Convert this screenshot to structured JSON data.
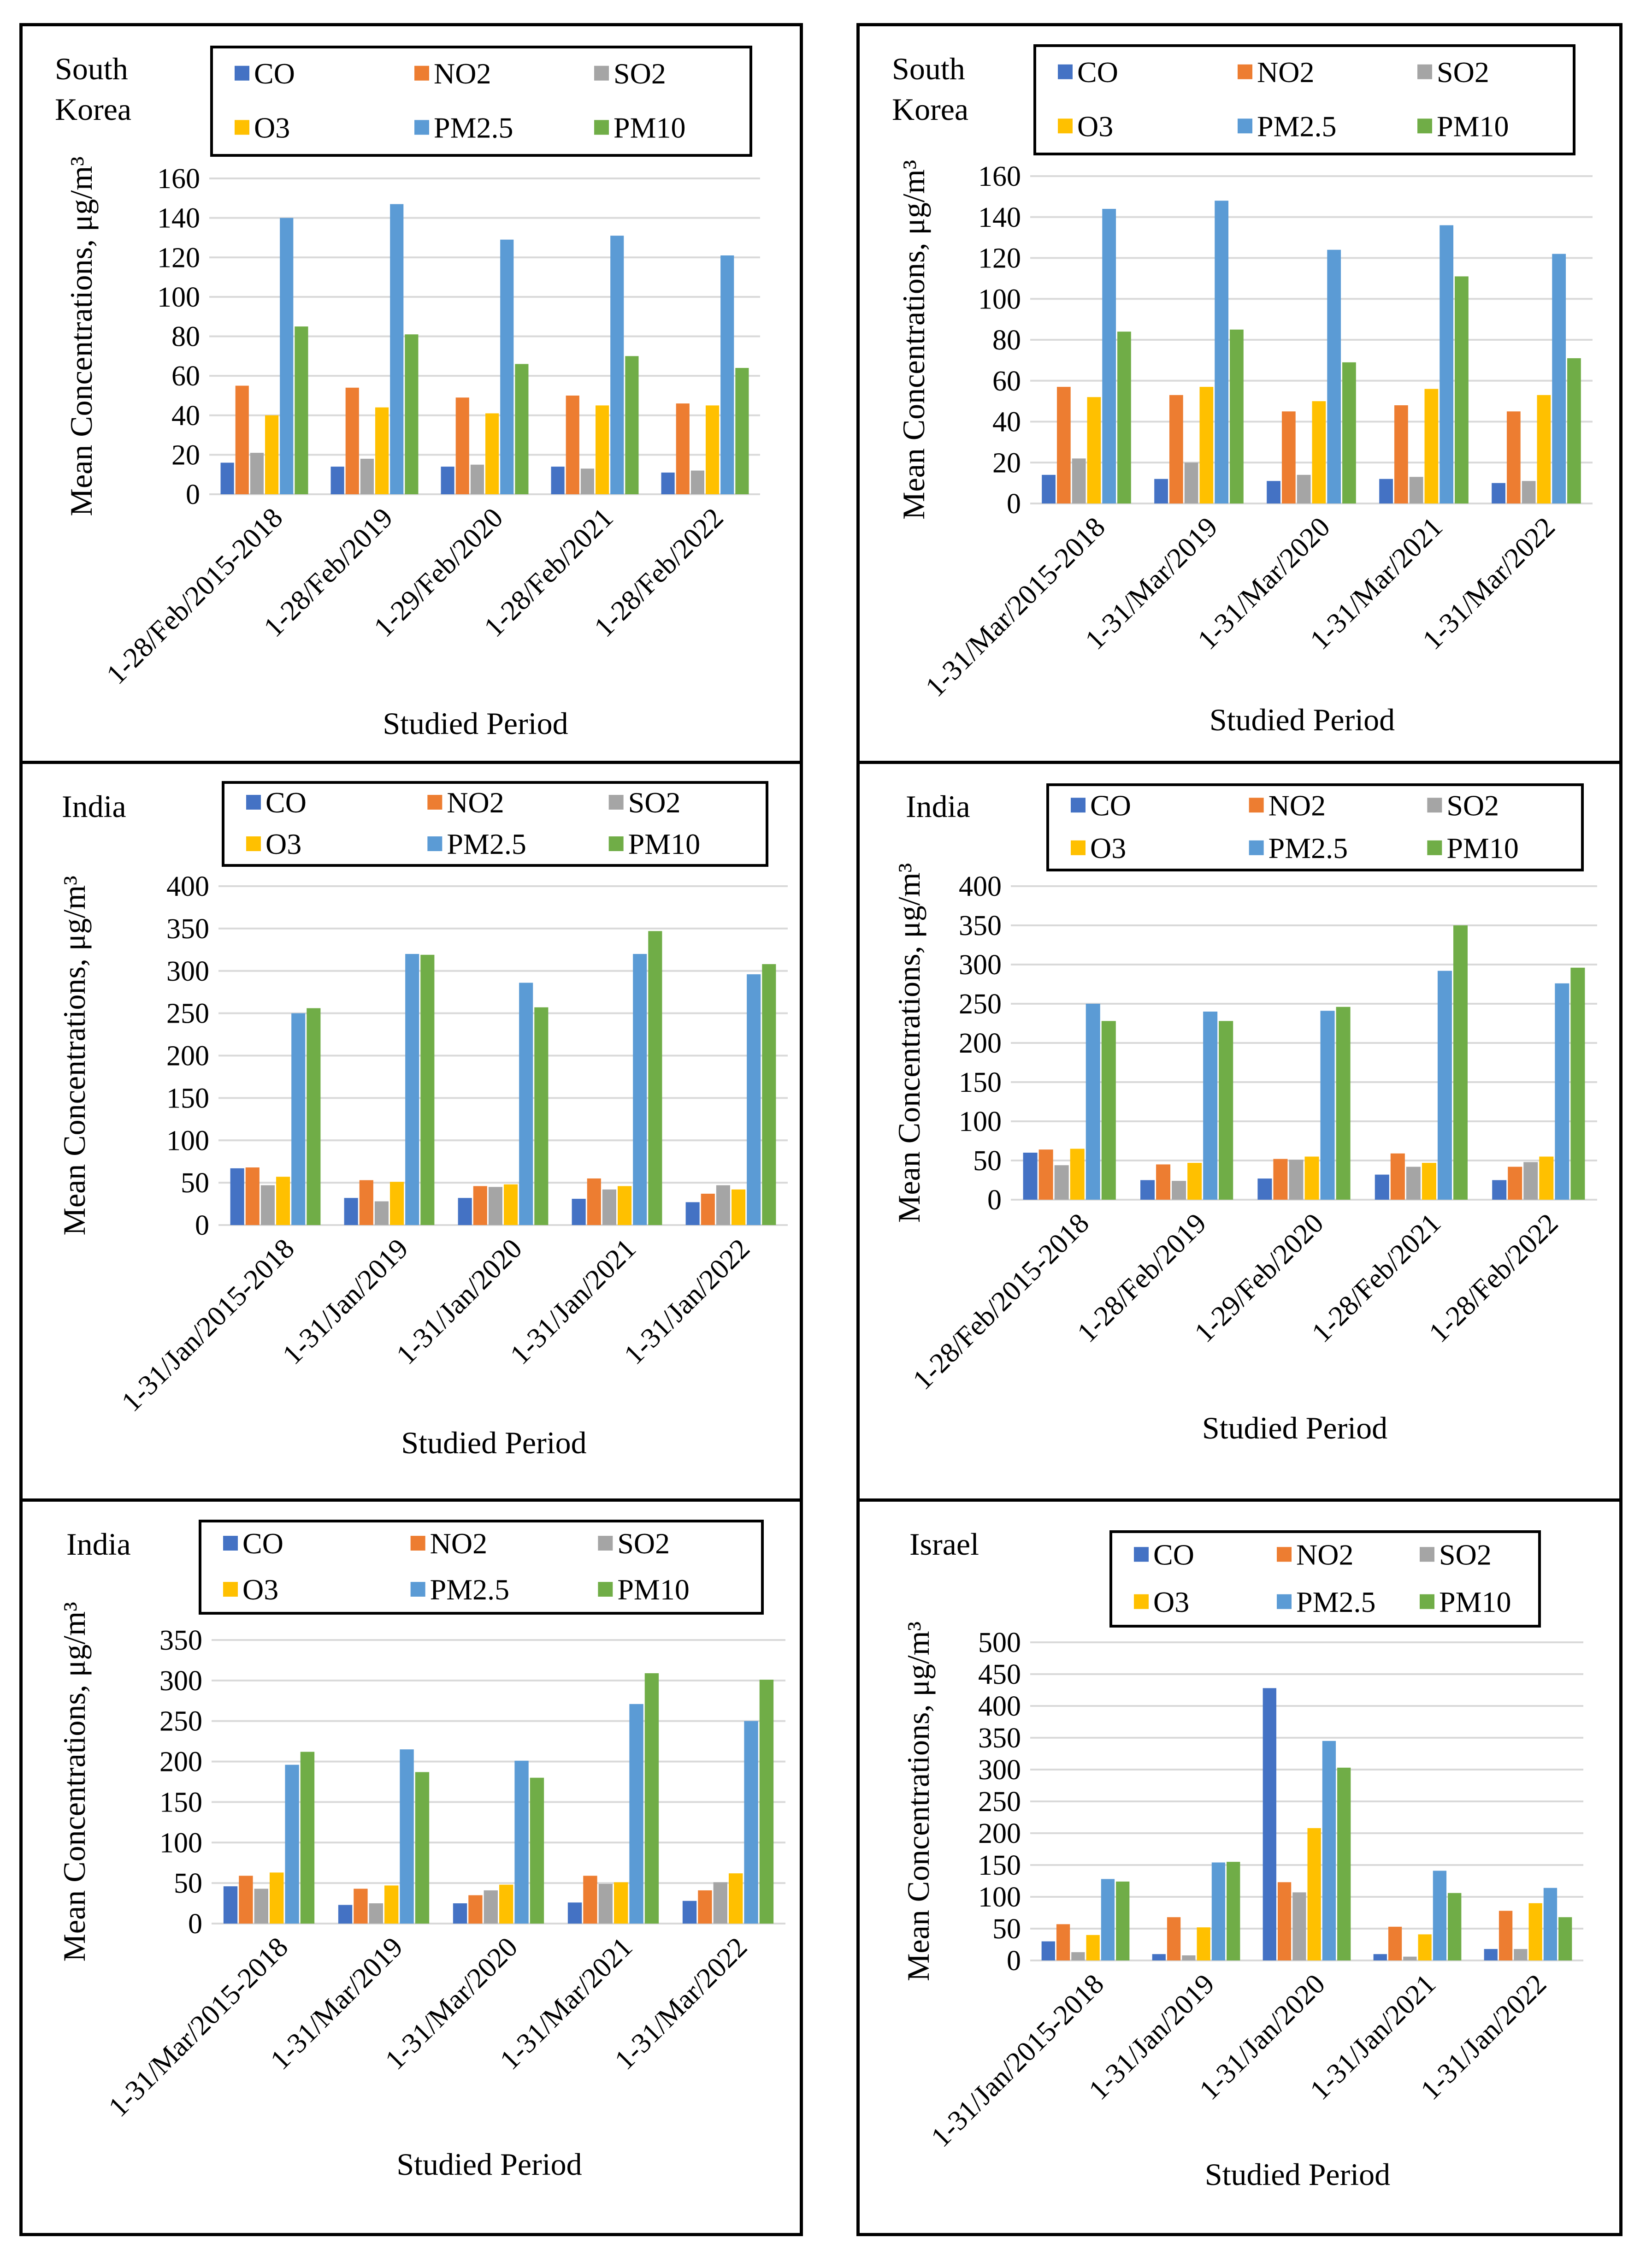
{
  "colors": {
    "CO": "#4472C4",
    "NO2": "#ED7D31",
    "SO2": "#A5A5A5",
    "O3": "#FFC000",
    "PM2.5": "#5B9BD5",
    "PM10": "#70AD47"
  },
  "chart_data": [
    {
      "type": "bar",
      "title": "South Korea",
      "xlabel": "Studied Period",
      "ylabel": "Mean Concentrations, μg/m³",
      "ylim": [
        0,
        160
      ],
      "yticks": [
        "0",
        "20",
        "40",
        "60",
        "80",
        "100",
        "120",
        "140",
        "160"
      ],
      "categories": [
        "1-28/Feb/2015-2018",
        "1-28/Feb/2019",
        "1-29/Feb/2020",
        "1-28/Feb/2021",
        "1-28/Feb/2022"
      ],
      "series": [
        {
          "name": "CO",
          "values": [
            16,
            14,
            14,
            14,
            11
          ]
        },
        {
          "name": "NO2",
          "values": [
            55,
            54,
            49,
            50,
            46
          ]
        },
        {
          "name": "SO2",
          "values": [
            21,
            18,
            15,
            13,
            12
          ]
        },
        {
          "name": "O3",
          "values": [
            40,
            44,
            41,
            45,
            45
          ]
        },
        {
          "name": "PM2.5",
          "values": [
            140,
            147,
            129,
            131,
            121
          ]
        },
        {
          "name": "PM10",
          "values": [
            85,
            81,
            66,
            70,
            64
          ]
        }
      ]
    },
    {
      "type": "bar",
      "title": "South Korea",
      "xlabel": "Studied Period",
      "ylabel": "Mean Concentrations, μg/m³",
      "ylim": [
        0,
        160
      ],
      "yticks": [
        "0",
        "20",
        "40",
        "60",
        "80",
        "100",
        "120",
        "140",
        "160"
      ],
      "categories": [
        "1-31/Mar/2015-2018",
        "1-31/Mar/2019",
        "1-31/Mar/2020",
        "1-31/Mar/2021",
        "1-31/Mar/2022"
      ],
      "series": [
        {
          "name": "CO",
          "values": [
            14,
            12,
            11,
            12,
            10
          ]
        },
        {
          "name": "NO2",
          "values": [
            57,
            53,
            45,
            48,
            45
          ]
        },
        {
          "name": "SO2",
          "values": [
            22,
            20,
            14,
            13,
            11
          ]
        },
        {
          "name": "O3",
          "values": [
            52,
            57,
            50,
            56,
            53
          ]
        },
        {
          "name": "PM2.5",
          "values": [
            144,
            148,
            124,
            136,
            122
          ]
        },
        {
          "name": "PM10",
          "values": [
            84,
            85,
            69,
            111,
            71
          ]
        }
      ]
    },
    {
      "type": "bar",
      "title": "India",
      "xlabel": "Studied Period",
      "ylabel": "Mean Concentrations, μg/m³",
      "ylim": [
        0,
        400
      ],
      "yticks": [
        "0",
        "50",
        "100",
        "150",
        "200",
        "250",
        "300",
        "350",
        "400"
      ],
      "categories": [
        "1-31/Jan/2015-2018",
        "1-31/Jan/2019",
        "1-31/Jan/2020",
        "1-31/Jan/2021",
        "1-31/Jan/2022"
      ],
      "series": [
        {
          "name": "CO",
          "values": [
            67,
            32,
            32,
            31,
            27
          ]
        },
        {
          "name": "NO2",
          "values": [
            68,
            53,
            46,
            55,
            37
          ]
        },
        {
          "name": "SO2",
          "values": [
            47,
            28,
            45,
            42,
            47
          ]
        },
        {
          "name": "O3",
          "values": [
            57,
            51,
            48,
            46,
            42
          ]
        },
        {
          "name": "PM2.5",
          "values": [
            250,
            320,
            286,
            320,
            296
          ]
        },
        {
          "name": "PM10",
          "values": [
            256,
            319,
            257,
            347,
            308
          ]
        }
      ]
    },
    {
      "type": "bar",
      "title": "India",
      "xlabel": "Studied Period",
      "ylabel": "Mean Concentrations, μg/m³",
      "ylim": [
        0,
        400
      ],
      "yticks": [
        "0",
        "50",
        "100",
        "150",
        "200",
        "250",
        "300",
        "350",
        "400"
      ],
      "categories": [
        "1-28/Feb/2015-2018",
        "1-28/Feb/2019",
        "1-29/Feb/2020",
        "1-28/Feb/2021",
        "1-28/Feb/2022"
      ],
      "series": [
        {
          "name": "CO",
          "values": [
            60,
            25,
            27,
            32,
            25
          ]
        },
        {
          "name": "NO2",
          "values": [
            64,
            45,
            52,
            59,
            42
          ]
        },
        {
          "name": "SO2",
          "values": [
            44,
            24,
            51,
            42,
            48
          ]
        },
        {
          "name": "O3",
          "values": [
            65,
            47,
            55,
            47,
            55
          ]
        },
        {
          "name": "PM2.5",
          "values": [
            250,
            240,
            241,
            292,
            276
          ]
        },
        {
          "name": "PM10",
          "values": [
            228,
            228,
            246,
            350,
            296
          ]
        }
      ]
    },
    {
      "type": "bar",
      "title": "India",
      "xlabel": "Studied Period",
      "ylabel": "Mean Concentrations, μg/m³",
      "ylim": [
        0,
        350
      ],
      "yticks": [
        "0",
        "50",
        "100",
        "150",
        "200",
        "250",
        "300",
        "350"
      ],
      "categories": [
        "1-31/Mar/2015-2018",
        "1-31/Mar/2019",
        "1-31/Mar/2020",
        "1-31/Mar/2021",
        "1-31/Mar/2022"
      ],
      "series": [
        {
          "name": "CO",
          "values": [
            46,
            23,
            25,
            26,
            28
          ]
        },
        {
          "name": "NO2",
          "values": [
            59,
            43,
            35,
            59,
            41
          ]
        },
        {
          "name": "SO2",
          "values": [
            43,
            25,
            41,
            49,
            51
          ]
        },
        {
          "name": "O3",
          "values": [
            63,
            47,
            48,
            51,
            62
          ]
        },
        {
          "name": "PM2.5",
          "values": [
            196,
            215,
            201,
            271,
            250
          ]
        },
        {
          "name": "PM10",
          "values": [
            212,
            187,
            180,
            309,
            301
          ]
        }
      ]
    },
    {
      "type": "bar",
      "title": "Israel",
      "xlabel": "Studied Period",
      "ylabel": "Mean Concentrations, μg/m³",
      "ylim": [
        0,
        500
      ],
      "yticks": [
        "0",
        "50",
        "100",
        "150",
        "200",
        "250",
        "300",
        "350",
        "400",
        "450",
        "500"
      ],
      "categories": [
        "1-31/Jan/2015-2018",
        "1-31/Jan/2019",
        "1-31/Jan/2020",
        "1-31/Jan/2021",
        "1-31/Jan/2022"
      ],
      "series": [
        {
          "name": "CO",
          "values": [
            30,
            10,
            428,
            10,
            18
          ]
        },
        {
          "name": "NO2",
          "values": [
            57,
            68,
            123,
            53,
            78
          ]
        },
        {
          "name": "SO2",
          "values": [
            13,
            8,
            107,
            6,
            18
          ]
        },
        {
          "name": "O3",
          "values": [
            40,
            52,
            208,
            41,
            90
          ]
        },
        {
          "name": "PM2.5",
          "values": [
            128,
            154,
            345,
            141,
            114
          ]
        },
        {
          "name": "PM10",
          "values": [
            124,
            155,
            303,
            106,
            68
          ]
        }
      ]
    }
  ]
}
